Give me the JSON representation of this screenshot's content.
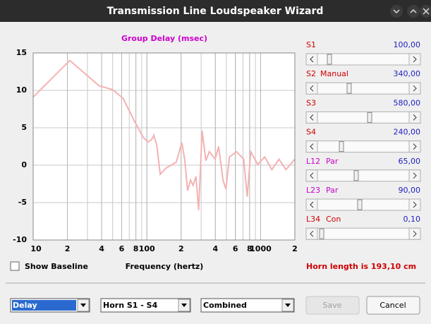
{
  "window": {
    "title": "Transmission Line Loudspeaker Wizard"
  },
  "chart_data": {
    "type": "line",
    "title": "Group Delay (msec)",
    "x_label": "Frequency (hertz)",
    "x": [
      10,
      21,
      38,
      50,
      62,
      77,
      93,
      102,
      110,
      115,
      122,
      131,
      147,
      181,
      203,
      215,
      228,
      242,
      255,
      270,
      285,
      306,
      330,
      354,
      398,
      427,
      467,
      495,
      532,
      615,
      710,
      762,
      820,
      943,
      1088,
      1254,
      1450,
      1670,
      2000
    ],
    "series": [
      {
        "color": "#f4b2b2",
        "values": [
          9.1,
          14.0,
          10.6,
          10.1,
          8.9,
          6.0,
          3.7,
          3.1,
          3.4,
          4.0,
          2.7,
          -1.2,
          -0.4,
          0.4,
          3.0,
          0.8,
          -3.4,
          -2.0,
          -2.7,
          -1.5,
          -6.0,
          4.6,
          0.6,
          1.8,
          0.8,
          2.5,
          -2.0,
          -3.2,
          1.1,
          1.8,
          0.8,
          -4.2,
          1.8,
          0.1,
          1.1,
          -0.6,
          0.8,
          -0.6,
          0.8
        ]
      }
    ],
    "xlim": [
      10,
      2000
    ],
    "ylim": [
      -10,
      15
    ],
    "log_x": true,
    "grid": true,
    "yticks": [
      15,
      10,
      5,
      0,
      -5,
      -10
    ],
    "xticks": [
      10,
      {
        "value": 20,
        "label": "2"
      },
      {
        "value": 40,
        "label": "4"
      },
      {
        "value": 60,
        "label": "6"
      },
      {
        "value": 80,
        "label": "8"
      },
      100,
      {
        "value": 200,
        "label": "2"
      },
      {
        "value": 400,
        "label": "4"
      },
      {
        "value": 600,
        "label": "6"
      },
      {
        "value": 800,
        "label": "8"
      },
      1000,
      {
        "value": 2000,
        "label": "2"
      }
    ]
  },
  "sliders": [
    {
      "label": "S1",
      "value": "100,00"
    },
    {
      "label": "S2",
      "mode": "Manual",
      "value": "340,00"
    },
    {
      "label": "S3",
      "value": "580,00"
    },
    {
      "label": "S4",
      "value": "240,00"
    },
    {
      "label": "L12",
      "mode": "Par",
      "value": "65,00"
    },
    {
      "label": "L23",
      "mode": "Par",
      "value": "90,00"
    },
    {
      "label": "L34",
      "mode": "Con",
      "value": "0,10"
    }
  ],
  "checkbox": {
    "label": "Show Baseline"
  },
  "horn_length": "Horn length is 193,10 cm",
  "combos": [
    "Delay",
    "Horn S1 - S4",
    "Combined"
  ],
  "buttons": {
    "save": "Save",
    "cancel": "Cancel"
  }
}
